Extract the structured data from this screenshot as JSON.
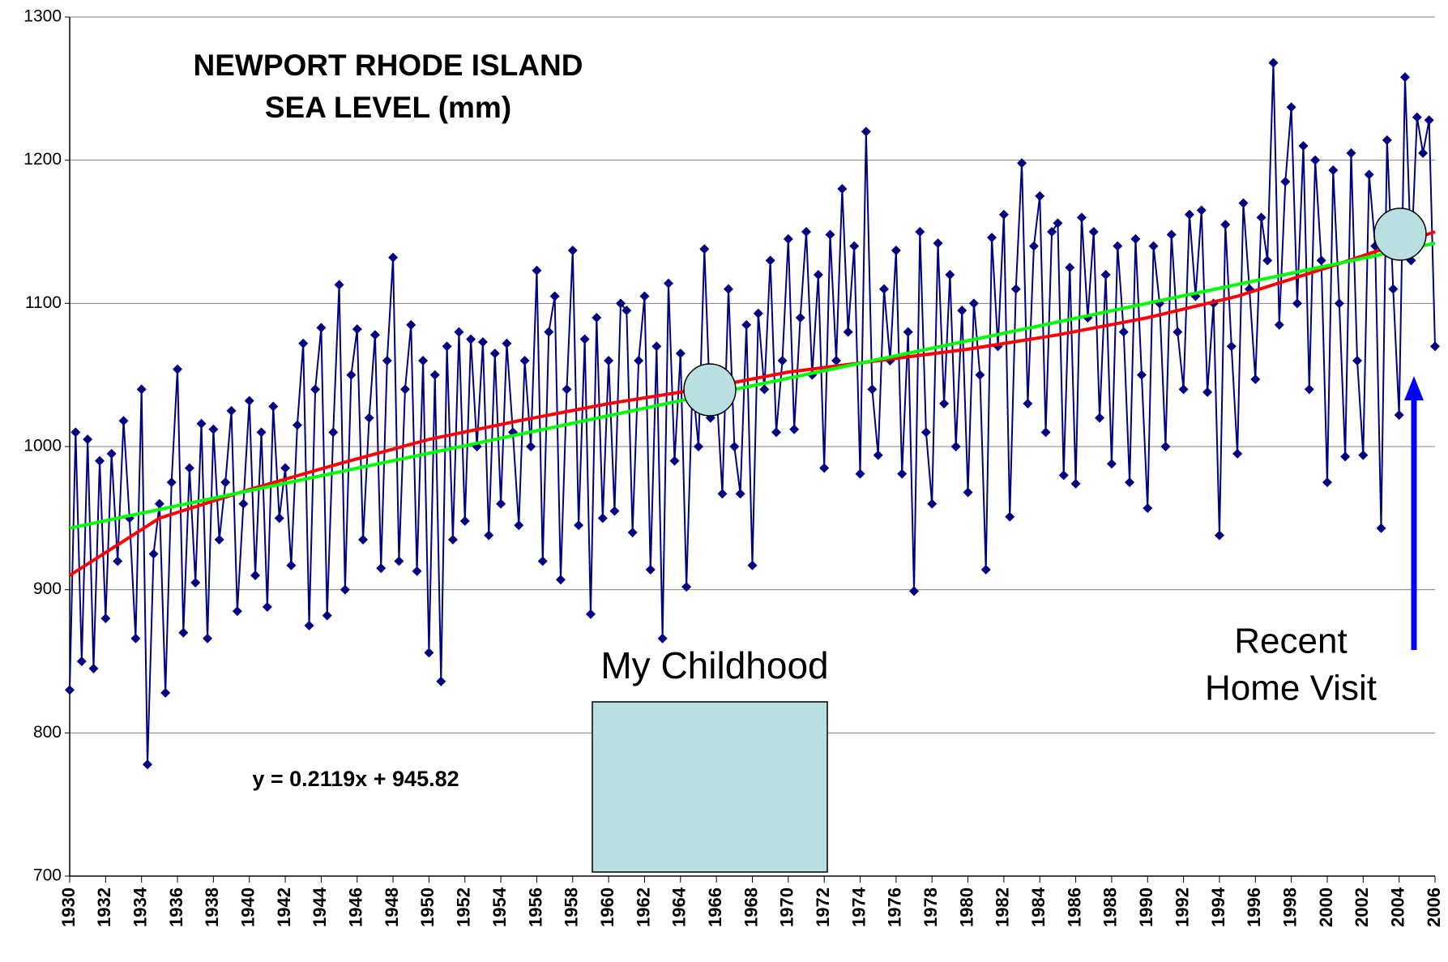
{
  "chart_data": {
    "type": "line",
    "title": [
      "NEWPORT RHODE ISLAND",
      "SEA LEVEL (mm)"
    ],
    "annotations": {
      "equation": "y = 0.2119x + 945.82",
      "childhood": "My Childhood",
      "visit": [
        "Recent",
        "Home Visit"
      ]
    },
    "xlim": [
      1930,
      2006
    ],
    "xticks": [
      1930,
      1932,
      1934,
      1936,
      1938,
      1940,
      1942,
      1944,
      1946,
      1948,
      1950,
      1952,
      1954,
      1956,
      1958,
      1960,
      1962,
      1964,
      1966,
      1968,
      1970,
      1972,
      1974,
      1976,
      1978,
      1980,
      1982,
      1984,
      1986,
      1988,
      1990,
      1992,
      1994,
      1996,
      1998,
      2000,
      2002,
      2004,
      2006
    ],
    "ylim": [
      700,
      1300
    ],
    "yticks": [
      700,
      800,
      900,
      1000,
      1100,
      1200,
      1300
    ],
    "grid": true,
    "series": [
      {
        "color": "#000080",
        "marker": "diamond",
        "x": [
          1930,
          1930.33,
          1930.67,
          1931,
          1931.33,
          1931.67,
          1932,
          1932.33,
          1932.67,
          1933,
          1933.33,
          1933.67,
          1934,
          1934.33,
          1934.67,
          1935,
          1935.33,
          1935.67,
          1936,
          1936.33,
          1936.67,
          1937,
          1937.33,
          1937.67,
          1938,
          1938.33,
          1938.67,
          1939,
          1939.33,
          1939.67,
          1940,
          1940.33,
          1940.67,
          1941,
          1941.33,
          1941.67,
          1942,
          1942.33,
          1942.67,
          1943,
          1943.33,
          1943.67,
          1944,
          1944.33,
          1944.67,
          1945,
          1945.33,
          1945.67,
          1946,
          1946.33,
          1946.67,
          1947,
          1947.33,
          1947.67,
          1948,
          1948.33,
          1948.67,
          1949,
          1949.33,
          1949.67,
          1950,
          1950.33,
          1950.67,
          1951,
          1951.33,
          1951.67,
          1952,
          1952.33,
          1952.67,
          1953,
          1953.33,
          1953.67,
          1954,
          1954.33,
          1954.67,
          1955,
          1955.33,
          1955.67,
          1956,
          1956.33,
          1956.67,
          1957,
          1957.33,
          1957.67,
          1958,
          1958.33,
          1958.67,
          1959,
          1959.33,
          1959.67,
          1960,
          1960.33,
          1960.67,
          1961,
          1961.33,
          1961.67,
          1962,
          1962.33,
          1962.67,
          1963,
          1963.33,
          1963.67,
          1964,
          1964.33,
          1964.67,
          1965,
          1965.33,
          1965.67,
          1966,
          1966.33,
          1966.67,
          1967,
          1967.33,
          1967.67,
          1968,
          1968.33,
          1968.67,
          1969,
          1969.33,
          1969.67,
          1970,
          1970.33,
          1970.67,
          1971,
          1971.33,
          1971.67,
          1972,
          1972.33,
          1972.67,
          1973,
          1973.33,
          1973.67,
          1974,
          1974.33,
          1974.67,
          1975,
          1975.33,
          1975.67,
          1976,
          1976.33,
          1976.67,
          1977,
          1977.33,
          1977.67,
          1978,
          1978.33,
          1978.67,
          1979,
          1979.33,
          1979.67,
          1980,
          1980.33,
          1980.67,
          1981,
          1981.33,
          1981.67,
          1982,
          1982.33,
          1982.67,
          1983,
          1983.33,
          1983.67,
          1984,
          1984.33,
          1984.67,
          1985,
          1985.33,
          1985.67,
          1986,
          1986.33,
          1986.67,
          1987,
          1987.33,
          1987.67,
          1988,
          1988.33,
          1988.67,
          1989,
          1989.33,
          1989.67,
          1990,
          1990.33,
          1990.67,
          1991,
          1991.33,
          1991.67,
          1992,
          1992.33,
          1992.67,
          1993,
          1993.33,
          1993.67,
          1994,
          1994.33,
          1994.67,
          1995,
          1995.33,
          1995.67,
          1996,
          1996.33,
          1996.67,
          1997,
          1997.33,
          1997.67,
          1998,
          1998.33,
          1998.67,
          1999,
          1999.33,
          1999.67,
          2000,
          2000.33,
          2000.67,
          2001,
          2001.33,
          2001.67,
          2002,
          2002.33,
          2002.67,
          2003,
          2003.33,
          2003.67,
          2004,
          2004.33,
          2004.67,
          2005,
          2005.33,
          2005.67,
          2006
        ],
        "values": [
          830,
          1010,
          850,
          1005,
          845,
          990,
          880,
          995,
          920,
          1018,
          950,
          866,
          1040,
          778,
          925,
          960,
          828,
          975,
          1054,
          870,
          985,
          905,
          1016,
          866,
          1012,
          935,
          975,
          1025,
          885,
          960,
          1032,
          910,
          1010,
          888,
          1028,
          950,
          985,
          917,
          1015,
          1072,
          875,
          1040,
          1083,
          882,
          1010,
          1113,
          900,
          1050,
          1082,
          935,
          1020,
          1078,
          915,
          1060,
          1132,
          920,
          1040,
          1085,
          913,
          1060,
          856,
          1050,
          836,
          1070,
          935,
          1080,
          948,
          1075,
          1000,
          1073,
          938,
          1065,
          960,
          1072,
          1010,
          945,
          1060,
          1000,
          1123,
          920,
          1080,
          1105,
          907,
          1040,
          1137,
          945,
          1075,
          883,
          1090,
          950,
          1060,
          955,
          1100,
          1095,
          940,
          1060,
          1105,
          914,
          1070,
          866,
          1114,
          990,
          1065,
          902,
          1045,
          1000,
          1138,
          1020,
          1040,
          967,
          1110,
          1000,
          967,
          1085,
          917,
          1093,
          1040,
          1130,
          1010,
          1060,
          1145,
          1012,
          1090,
          1150,
          1050,
          1120,
          985,
          1148,
          1060,
          1180,
          1080,
          1140,
          981,
          1220,
          1040,
          994,
          1110,
          1060,
          1137,
          981,
          1080,
          899,
          1150,
          1010,
          960,
          1142,
          1030,
          1120,
          1000,
          1095,
          968,
          1100,
          1050,
          914,
          1146,
          1070,
          1162,
          951,
          1110,
          1198,
          1030,
          1140,
          1175,
          1010,
          1150,
          1156,
          980,
          1125,
          974,
          1160,
          1090,
          1150,
          1020,
          1120,
          988,
          1140,
          1080,
          975,
          1145,
          1050,
          957,
          1140,
          1100,
          1000,
          1148,
          1080,
          1040,
          1162,
          1105,
          1165,
          1038,
          1100,
          938,
          1155,
          1070,
          995,
          1170,
          1110,
          1047,
          1160,
          1130,
          1268,
          1085,
          1185,
          1237,
          1100,
          1210,
          1040,
          1200,
          1130,
          975,
          1193,
          1100,
          993,
          1205,
          1060,
          994,
          1190,
          1140,
          943,
          1214,
          1110,
          1022,
          1258,
          1130,
          1230,
          1205,
          1228,
          1070
        ]
      },
      {
        "color": "#ff0000",
        "x": [
          1930,
          1935,
          1940,
          1945,
          1950,
          1955,
          1960,
          1965,
          1970,
          1975,
          1980,
          1985,
          1990,
          1995,
          2000,
          2006
        ],
        "values": [
          910,
          950,
          970,
          988,
          1005,
          1018,
          1030,
          1040,
          1052,
          1060,
          1068,
          1078,
          1090,
          1105,
          1125,
          1150
        ]
      },
      {
        "color": "#00ff00",
        "x": [
          1930,
          2006
        ],
        "values": [
          943,
          1142
        ]
      }
    ]
  }
}
